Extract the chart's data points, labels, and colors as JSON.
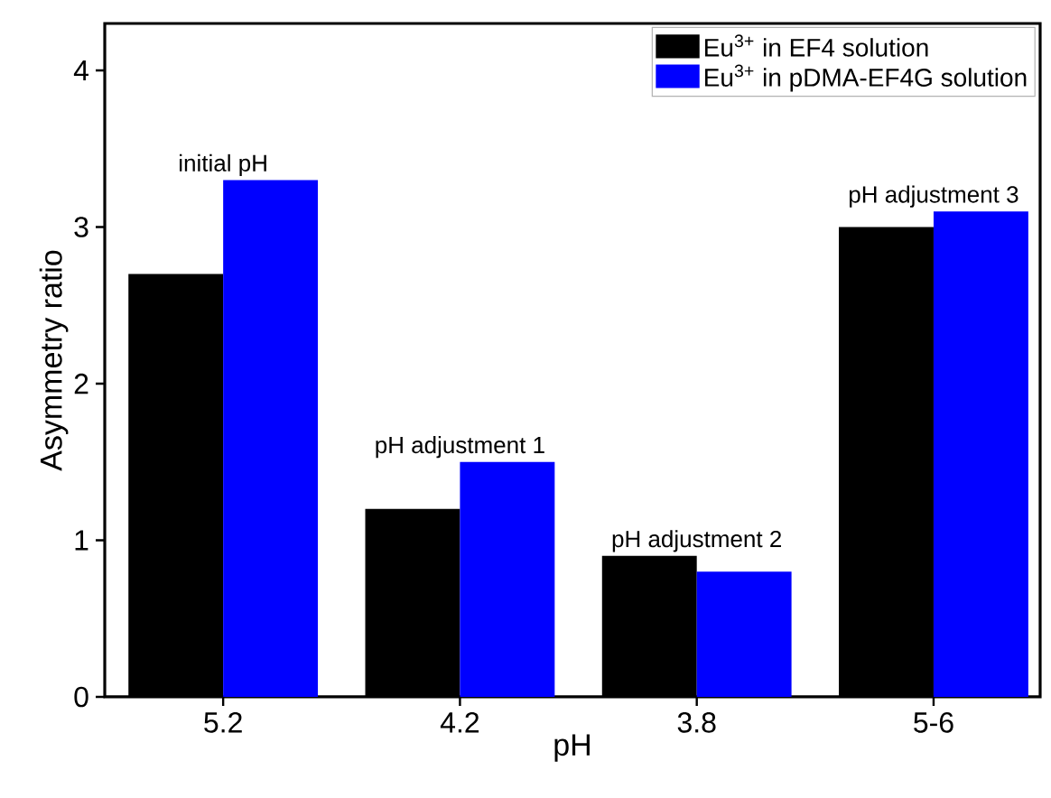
{
  "chart_data": {
    "type": "bar",
    "xlabel": "pH",
    "ylabel": "Asymmetry ratio",
    "categories": [
      "5.2",
      "4.2",
      "3.8",
      "5-6"
    ],
    "series": [
      {
        "name": "Eu$^{3+}$ in EF4 solution",
        "color": "#000000",
        "values": [
          2.7,
          1.2,
          0.9,
          3.0
        ]
      },
      {
        "name": "Eu$^{3+}$ in pDMA-EF4G solution",
        "color": "#0000ff",
        "values": [
          3.3,
          1.5,
          0.8,
          3.1
        ]
      }
    ],
    "annotations": [
      "initial pH",
      "pH adjustment 1",
      "pH adjustment 2",
      "pH adjustment 3"
    ],
    "ylim": [
      0,
      4.3
    ],
    "yticks": [
      0,
      1,
      2,
      3,
      4
    ],
    "grid": false,
    "legend": "top right"
  }
}
